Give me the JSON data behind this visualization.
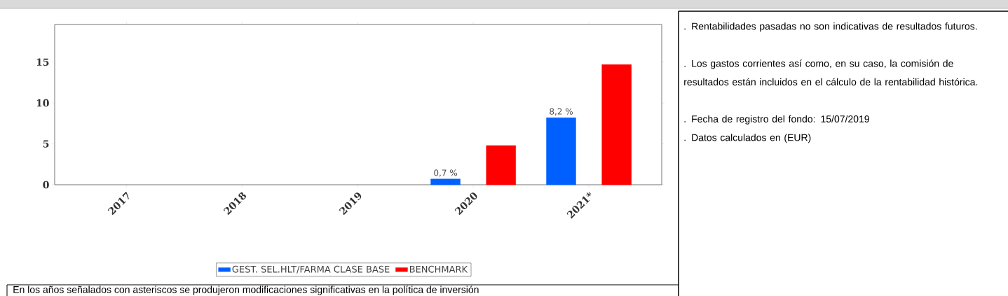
{
  "chart_data": {
    "type": "bar",
    "categories": [
      "2017",
      "2018",
      "2019",
      "2020",
      "2021*"
    ],
    "series": [
      {
        "name": "GEST. SEL.HLT/FARMA CLASE BASE",
        "color": "#0060ff",
        "values": [
          null,
          null,
          null,
          0.7,
          8.2
        ],
        "value_labels": [
          null,
          null,
          null,
          "0,7 %",
          "8,2 %"
        ]
      },
      {
        "name": "BENCHMARK",
        "color": "#ff0000",
        "values": [
          null,
          null,
          null,
          4.8,
          14.7
        ]
      }
    ],
    "ylim": [
      0,
      19.6
    ],
    "yticks": [
      0,
      5,
      10,
      15
    ],
    "legend": "bottom",
    "annotations": [
      ". Rentabilidades pasadas no son indicativas de resultados futuros.",
      ". Los gastos corrientes así como, en su caso, la comisión de resultados están incluidos en el cálculo de la rentabilidad histórica.",
      ". Fecha de registro del fondo: 15/07/2019",
      ". Datos calculados en (EUR)",
      "En los años señalados con asteriscos se produjeron modificaciones significativas en la política de inversión"
    ]
  }
}
